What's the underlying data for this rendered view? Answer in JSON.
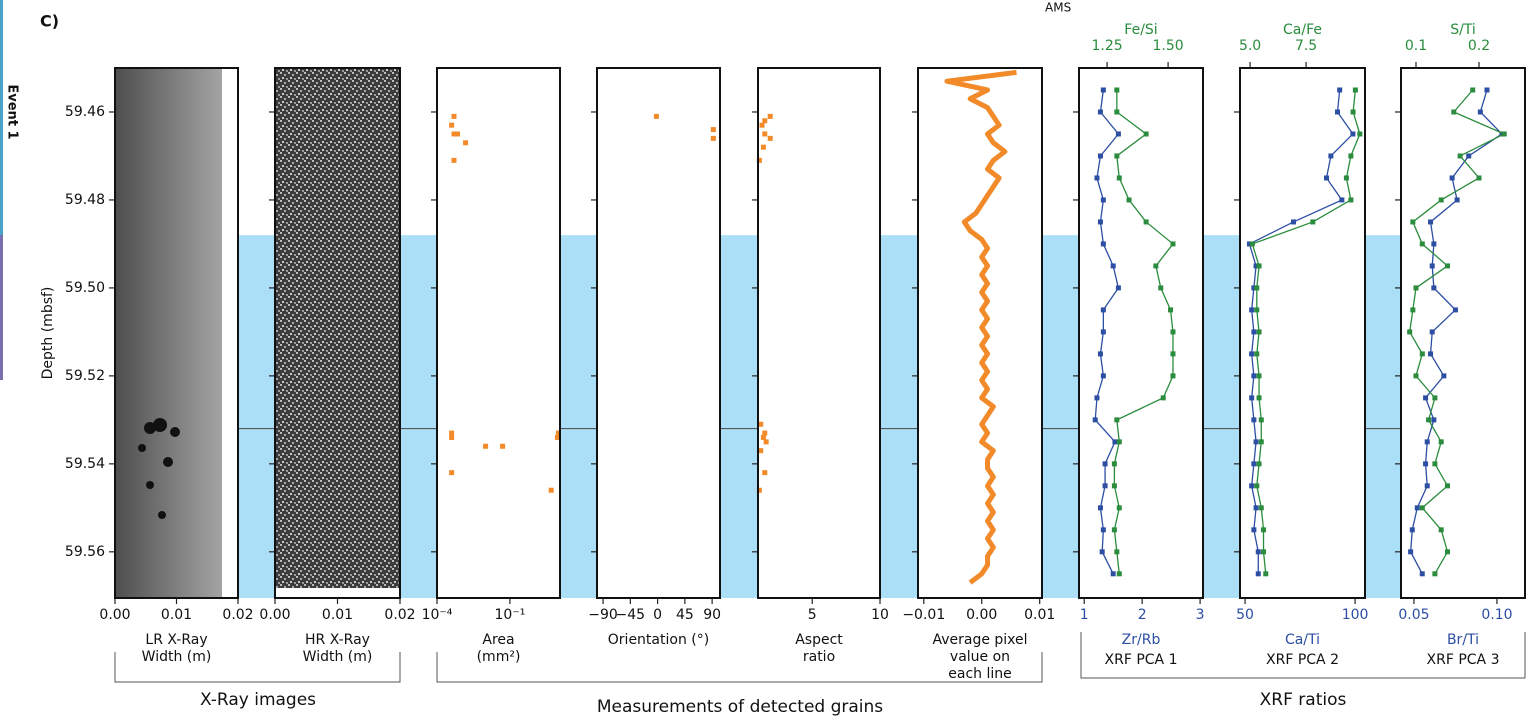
{
  "labels": {
    "panel": "C)",
    "ams": "AMS",
    "groups": [
      "X-Ray images",
      "Measurements of detected grains",
      "XRF ratios"
    ]
  },
  "event": {
    "label": "Event 1",
    "from": 59.488,
    "divider": 59.532,
    "color": "#aadff7"
  },
  "chart_data": [
    {
      "type": "image",
      "xlabel": [
        "LR X-Ray",
        "Width (m)"
      ],
      "xlim": [
        0,
        0.02
      ],
      "xticks": [
        {
          "value": 0,
          "label": "0.00"
        },
        0.01,
        0.02
      ],
      "ylabel": "Depth (mbsf)",
      "ylim": [
        59.45,
        59.5705
      ],
      "yticks": [
        59.46,
        59.48,
        {
          "value": 59.5,
          "label": "59.50"
        },
        59.52,
        59.54,
        59.56
      ]
    },
    {
      "type": "image",
      "xlabel": [
        "HR X-Ray",
        "Width (m)"
      ],
      "xlim": [
        0,
        0.02
      ],
      "xticks": [
        {
          "value": 0,
          "label": "0.00"
        },
        0.01,
        0.02
      ]
    },
    {
      "type": "scatter",
      "xlabel": [
        "Area",
        "(mm²)"
      ],
      "xscale": "log",
      "xlim": [
        0.0001,
        11.5
      ],
      "xticks": [
        {
          "value": 0.0001,
          "label": "10⁻⁴"
        },
        {
          "value": 0.1,
          "label": "10⁻¹"
        }
      ],
      "color": "#f28a2a",
      "y": [
        59.461,
        59.463,
        59.465,
        59.465,
        59.467,
        59.471,
        59.533,
        59.534,
        59.536,
        59.536,
        59.534,
        59.533,
        59.542,
        59.546
      ],
      "values": [
        0.0005,
        0.0004,
        0.0005,
        0.0007,
        0.0015,
        0.0005,
        0.0004,
        0.0004,
        0.01,
        0.05,
        9,
        10,
        0.0004,
        5
      ]
    },
    {
      "type": "scatter",
      "xlabel": [
        "Orientation (°)"
      ],
      "xlim": [
        -100,
        103
      ],
      "xticks": [
        {
          "value": -90,
          "label": "−90"
        },
        {
          "value": -45,
          "label": "−45"
        },
        0,
        45,
        90
      ],
      "color": "#f28a2a",
      "y": [
        59.461,
        59.464,
        59.466
      ],
      "values": [
        -2,
        92,
        92
      ]
    },
    {
      "type": "scatter",
      "xlabel": [
        "Aspect",
        "ratio"
      ],
      "xlim": [
        1,
        10
      ],
      "xticks": [
        5,
        10
      ],
      "color": "#f28a2a",
      "y": [
        59.461,
        59.462,
        59.463,
        59.465,
        59.466,
        59.468,
        59.471,
        59.531,
        59.533,
        59.534,
        59.535,
        59.537,
        59.542,
        59.546
      ],
      "values": [
        1.9,
        1.5,
        1.3,
        1.5,
        1.9,
        1.4,
        1.1,
        1.2,
        1.5,
        1.4,
        1.6,
        1.2,
        1.5,
        1.1
      ]
    },
    {
      "type": "line",
      "xlabel": [
        "Average pixel",
        "value on",
        "each line"
      ],
      "xlim": [
        -0.011,
        0.0104
      ],
      "xticks": [
        {
          "value": -0.01,
          "label": "−0.01"
        },
        {
          "value": 0,
          "label": "0.00"
        },
        0.01
      ],
      "color": "#f28a2a",
      "y": [
        59.451,
        59.453,
        59.455,
        59.457,
        59.459,
        59.461,
        59.463,
        59.465,
        59.467,
        59.469,
        59.471,
        59.473,
        59.475,
        59.477,
        59.479,
        59.481,
        59.483,
        59.485,
        59.487,
        59.489,
        59.491,
        59.493,
        59.495,
        59.497,
        59.499,
        59.501,
        59.503,
        59.505,
        59.507,
        59.509,
        59.511,
        59.513,
        59.515,
        59.517,
        59.519,
        59.521,
        59.523,
        59.525,
        59.527,
        59.529,
        59.531,
        59.533,
        59.535,
        59.537,
        59.539,
        59.541,
        59.543,
        59.545,
        59.547,
        59.549,
        59.551,
        59.553,
        59.555,
        59.557,
        59.559,
        59.561,
        59.563,
        59.565,
        59.567
      ],
      "values": [
        0.006,
        -0.006,
        0.001,
        -0.002,
        0.001,
        0.002,
        0.003,
        0.001,
        0.002,
        0.004,
        0.002,
        0.001,
        0.003,
        0.002,
        0.001,
        0,
        -0.001,
        -0.003,
        -0.002,
        0,
        0.001,
        0,
        0.001,
        0,
        0.001,
        0,
        0.001,
        0,
        0.001,
        0,
        0.001,
        0,
        0.001,
        0,
        0.001,
        0,
        0.001,
        0,
        0.002,
        0.001,
        0,
        0.001,
        0,
        0.002,
        0.001,
        0.001,
        0.002,
        0.001,
        0.002,
        0.001,
        0.002,
        0.001,
        0.002,
        0.001,
        0.002,
        0.001,
        0.001,
        0,
        -0.002
      ]
    },
    {
      "type": "xrf",
      "xlabel": "XRF PCA 1",
      "xlim": [
        0.91,
        3.05
      ],
      "xticks": [
        1,
        2,
        3
      ],
      "x2lim": [
        1.135,
        1.643
      ],
      "x2ticks": [
        1.25,
        {
          "value": 1.5,
          "label": "1.50"
        }
      ],
      "y": [
        59.455,
        59.46,
        59.465,
        59.47,
        59.475,
        59.48,
        59.485,
        59.49,
        59.495,
        59.5,
        59.505,
        59.51,
        59.515,
        59.52,
        59.525,
        59.53,
        59.535,
        59.54,
        59.545,
        59.55,
        59.555,
        59.56,
        59.565
      ],
      "series": [
        {
          "name": "Zr/Rb",
          "color": "#2c4ea3",
          "axis": "x",
          "values": [
            1.33,
            1.28,
            1.59,
            1.28,
            1.22,
            1.33,
            1.28,
            1.33,
            1.5,
            1.59,
            1.33,
            1.33,
            1.28,
            1.33,
            1.22,
            1.19,
            1.53,
            1.36,
            1.36,
            1.28,
            1.33,
            1.31,
            1.5
          ]
        },
        {
          "name": "Fe/Si",
          "color": "#2a8c3c",
          "axis": "x2",
          "values": [
            1.29,
            1.29,
            1.41,
            1.29,
            1.3,
            1.34,
            1.41,
            1.52,
            1.45,
            1.47,
            1.51,
            1.52,
            1.52,
            1.52,
            1.48,
            1.29,
            1.3,
            1.28,
            1.28,
            1.3,
            1.28,
            1.29,
            1.3
          ]
        }
      ]
    },
    {
      "type": "xrf",
      "xlabel": "XRF PCA 2",
      "xlim": [
        47.7,
        104.5
      ],
      "xticks": [
        50,
        100
      ],
      "x2lim": [
        4.55,
        10.13
      ],
      "x2ticks": [
        {
          "value": 5,
          "label": "5.0"
        },
        7.5
      ],
      "y": [
        59.455,
        59.46,
        59.465,
        59.47,
        59.475,
        59.48,
        59.485,
        59.49,
        59.495,
        59.5,
        59.505,
        59.51,
        59.515,
        59.52,
        59.525,
        59.53,
        59.535,
        59.54,
        59.545,
        59.55,
        59.555,
        59.56,
        59.565
      ],
      "series": [
        {
          "name": "Ca/Ti",
          "color": "#2c4ea3",
          "axis": "x",
          "values": [
            93,
            92,
            99,
            89,
            87,
            94,
            72,
            52,
            55,
            54,
            53,
            54,
            53,
            54,
            53,
            54,
            55,
            54,
            53,
            55,
            54,
            56,
            56
          ]
        },
        {
          "name": "Ca/Fe",
          "color": "#2a8c3c",
          "axis": "x2",
          "values": [
            9.7,
            9.6,
            9.9,
            9.5,
            9.3,
            9.5,
            7.8,
            5.1,
            5.4,
            5.3,
            5.3,
            5.4,
            5.3,
            5.4,
            5.4,
            5.5,
            5.5,
            5.4,
            5.3,
            5.5,
            5.6,
            5.6,
            5.7
          ]
        }
      ]
    },
    {
      "type": "xrf",
      "xlabel": "XRF PCA 3",
      "xlim": [
        0.0422,
        0.1169
      ],
      "xticks": [
        0.05,
        {
          "value": 0.1,
          "label": "0.10"
        }
      ],
      "x2lim": [
        0.0762,
        0.273
      ],
      "x2ticks": [
        0.1,
        0.2
      ],
      "y": [
        59.455,
        59.46,
        59.465,
        59.47,
        59.475,
        59.48,
        59.485,
        59.49,
        59.495,
        59.5,
        59.505,
        59.51,
        59.515,
        59.52,
        59.525,
        59.53,
        59.535,
        59.54,
        59.545,
        59.55,
        59.555,
        59.56,
        59.565
      ],
      "series": [
        {
          "name": "Br/Ti",
          "color": "#2c4ea3",
          "axis": "x",
          "values": [
            0.094,
            0.09,
            0.103,
            0.083,
            0.073,
            0.076,
            0.06,
            0.062,
            0.061,
            0.062,
            0.075,
            0.061,
            0.06,
            0.068,
            0.057,
            0.062,
            0.058,
            0.057,
            0.058,
            0.052,
            0.049,
            0.048,
            0.055
          ]
        },
        {
          "name": "S/Ti",
          "color": "#2a8c3c",
          "axis": "x2",
          "values": [
            0.19,
            0.16,
            0.24,
            0.17,
            0.2,
            0.14,
            0.095,
            0.11,
            0.15,
            0.1,
            0.095,
            0.09,
            0.11,
            0.1,
            0.13,
            0.12,
            0.14,
            0.13,
            0.15,
            0.11,
            0.14,
            0.15,
            0.13
          ]
        }
      ]
    }
  ]
}
